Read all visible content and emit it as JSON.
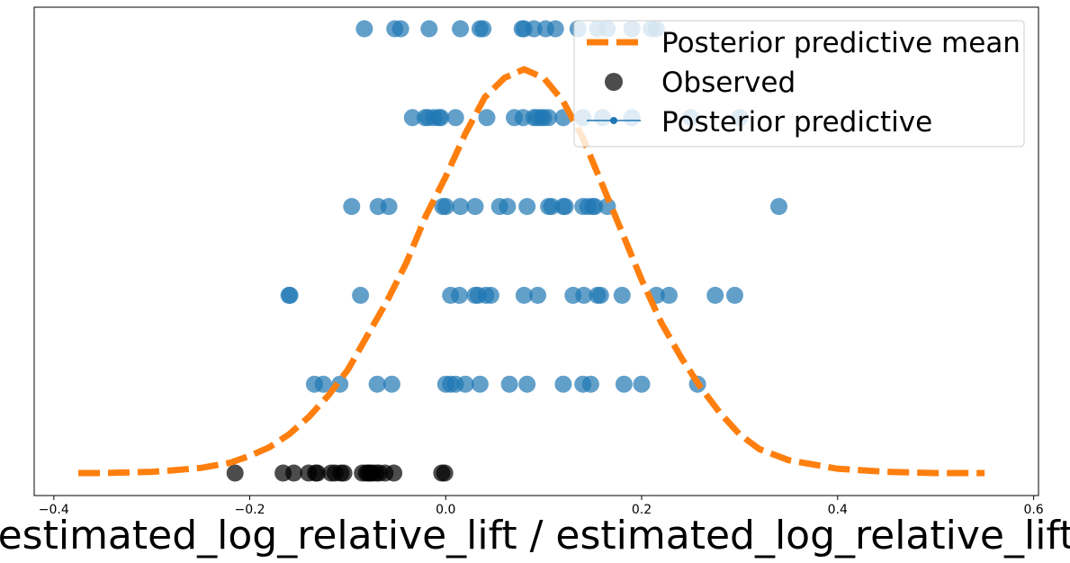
{
  "chart_data": {
    "type": "scatter",
    "title": "",
    "xlabel": "estimated_log_relative_lift / estimated_log_relative_lift",
    "ylabel": "",
    "xlim": [
      -0.42,
      0.605
    ],
    "ylim": [
      0,
      1
    ],
    "x_ticks": [
      -0.4,
      -0.2,
      0.0,
      0.2,
      0.4,
      0.6
    ],
    "x_tick_labels": [
      "−0.4",
      "−0.2",
      "0.0",
      "0.2",
      "0.4",
      "0.6"
    ],
    "grid": false,
    "legend": {
      "placement": "top-right",
      "entries": [
        "Posterior predictive mean",
        "Observed",
        "Posterior predictive"
      ]
    },
    "colors": {
      "mean_line": "#ff7f0e",
      "observed": "#000000",
      "predictive": "#1f77b4"
    },
    "series": [
      {
        "name": "Posterior predictive mean",
        "kind": "line",
        "x": [
          -0.375,
          -0.35,
          -0.3,
          -0.28,
          -0.25,
          -0.22,
          -0.2,
          -0.18,
          -0.16,
          -0.14,
          -0.12,
          -0.1,
          -0.08,
          -0.06,
          -0.04,
          -0.02,
          0.0,
          0.02,
          0.04,
          0.06,
          0.08,
          0.1,
          0.12,
          0.14,
          0.16,
          0.18,
          0.2,
          0.22,
          0.24,
          0.26,
          0.28,
          0.3,
          0.32,
          0.35,
          0.4,
          0.45,
          0.5,
          0.55
        ],
        "y": [
          0.0,
          0.0,
          0.003,
          0.006,
          0.012,
          0.024,
          0.04,
          0.06,
          0.09,
          0.13,
          0.18,
          0.24,
          0.32,
          0.4,
          0.49,
          0.6,
          0.69,
          0.79,
          0.875,
          0.92,
          0.94,
          0.92,
          0.865,
          0.78,
          0.67,
          0.56,
          0.45,
          0.35,
          0.27,
          0.2,
          0.14,
          0.09,
          0.056,
          0.03,
          0.01,
          0.003,
          0.0,
          0.0
        ]
      },
      {
        "name": "Observed",
        "kind": "points",
        "level": 0,
        "x": [
          -0.215,
          -0.166,
          -0.155,
          -0.14,
          -0.133,
          -0.131,
          -0.117,
          -0.113,
          -0.107,
          -0.104,
          -0.085,
          -0.081,
          -0.079,
          -0.077,
          -0.075,
          -0.071,
          -0.068,
          -0.062,
          -0.053,
          -0.004,
          -0.001
        ]
      },
      {
        "name": "Posterior predictive",
        "kind": "draws",
        "rows": [
          {
            "level": 1,
            "x": [
              -0.134,
              -0.125,
              -0.108,
              -0.07,
              -0.055,
              0.0,
              0.005,
              0.01,
              0.02,
              0.035,
              0.065,
              0.083,
              0.12,
              0.14,
              0.148,
              0.182,
              0.2,
              0.257
            ]
          },
          {
            "level": 2,
            "x": [
              -0.16,
              -0.159,
              -0.087,
              0.005,
              0.014,
              0.03,
              0.033,
              0.041,
              0.046,
              0.08,
              0.094,
              0.13,
              0.141,
              0.155,
              0.158,
              0.18,
              0.215,
              0.228,
              0.275,
              0.295
            ]
          },
          {
            "level": 3,
            "x": [
              -0.096,
              -0.069,
              -0.058,
              -0.003,
              0.0,
              0.015,
              0.03,
              0.055,
              0.063,
              0.083,
              0.105,
              0.108,
              0.12,
              0.122,
              0.14,
              0.145,
              0.15,
              0.152,
              0.165,
              0.34
            ]
          },
          {
            "level": 4,
            "x": [
              -0.034,
              -0.021,
              -0.018,
              -0.012,
              -0.007,
              -0.005,
              0.01,
              0.042,
              0.07,
              0.079,
              0.09,
              0.093,
              0.097,
              0.1,
              0.105,
              0.12,
              0.14,
              0.16,
              0.19,
              0.25,
              0.3
            ]
          },
          {
            "level": 5,
            "x": [
              -0.083,
              -0.052,
              -0.046,
              -0.017,
              0.015,
              0.035,
              0.038,
              0.078,
              0.08,
              0.09,
              0.102,
              0.112,
              0.135,
              0.155,
              0.165,
              0.19,
              0.21,
              0.215
            ]
          }
        ]
      }
    ]
  }
}
